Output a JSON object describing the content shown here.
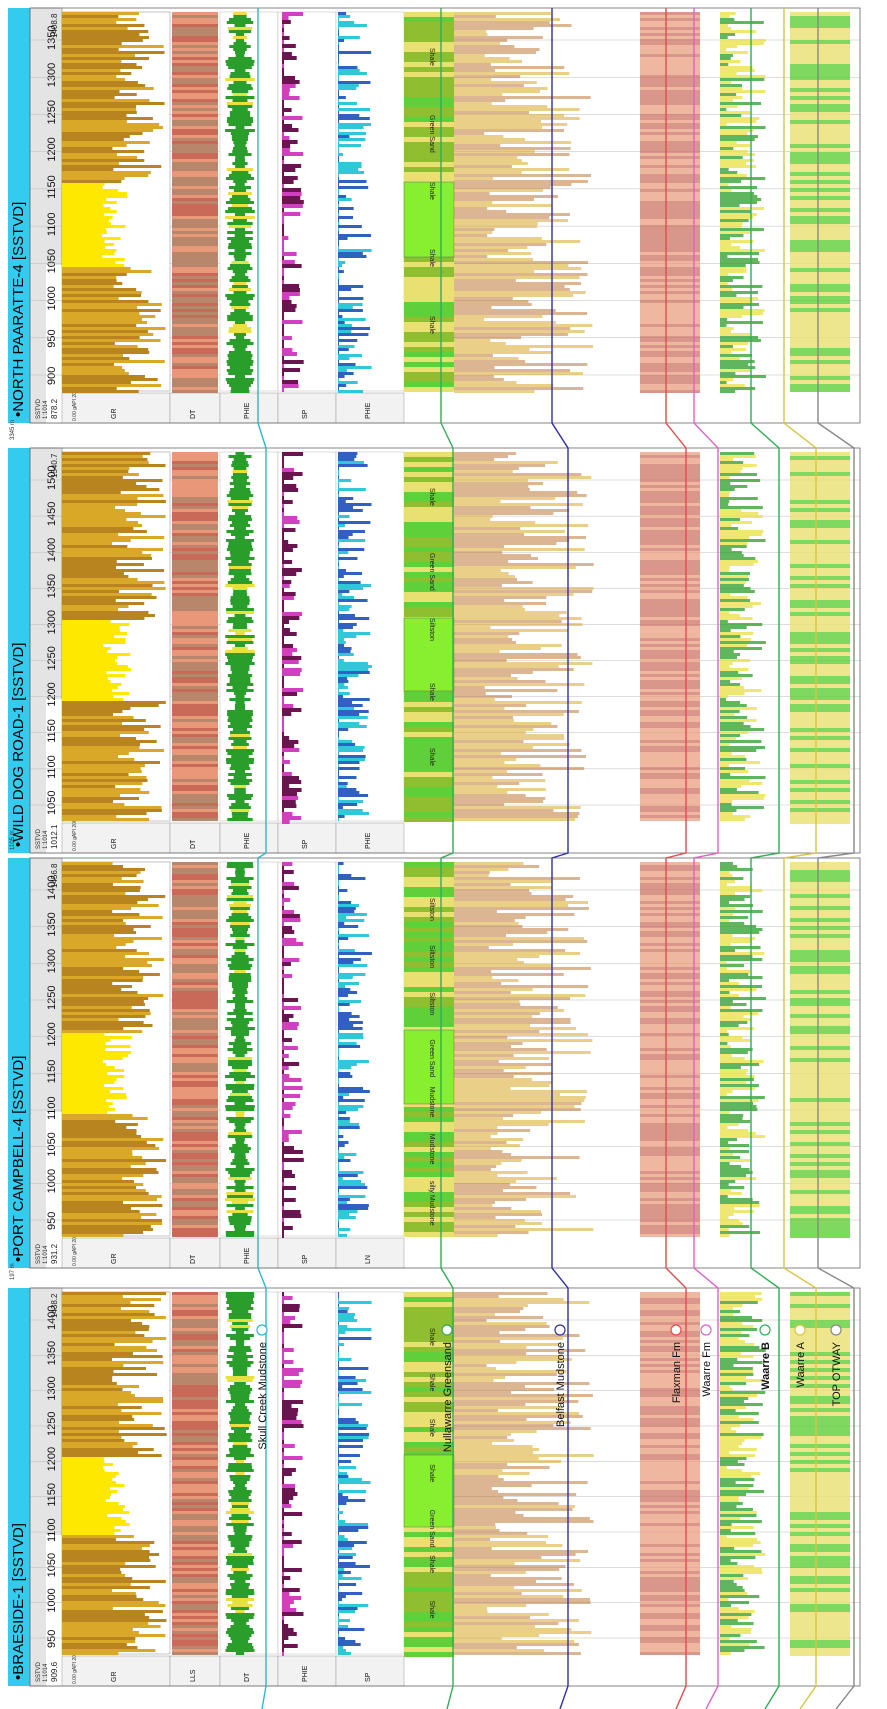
{
  "wells": [
    {
      "name": "NORTH PAARATTE-4 [SSTVD]",
      "ref_label": "SSTVD",
      "scale_label": "1:1014",
      "top_value": "878.2",
      "bottom_value": "1408.8",
      "depth_ticks": [
        "900",
        "950",
        "1000",
        "1050",
        "1100",
        "1150",
        "1200",
        "1250",
        "1300",
        "1350"
      ],
      "curves": [
        "GR",
        "DT",
        "PHIE",
        "SP",
        "PHIE"
      ],
      "gr_scale": "0.00 gAPI 200.00",
      "lithology_labels": [
        "Shale",
        "Green Sand",
        "Shale",
        "Shale",
        "Shale"
      ]
    },
    {
      "name": "WILD DOG ROAD-1 [SSTVD]",
      "ref_label": "SSTVD",
      "scale_label": "1:1014",
      "top_value": "1012.1",
      "bottom_value": "1540.7",
      "depth_ticks": [
        "1050",
        "1100",
        "1150",
        "1200",
        "1250",
        "1300",
        "1350",
        "1400",
        "1450",
        "1500"
      ],
      "curves": [
        "GR",
        "DT",
        "PHIE",
        "SP",
        "PHIE"
      ],
      "gr_scale": "0.00 gAPI 200.00",
      "lithology_labels": [
        "Shale",
        "Green Sand",
        "Siltston",
        "Shale",
        "Shale"
      ]
    },
    {
      "name": "PORT CAMPBELL-4 [SSTVD]",
      "ref_label": "SSTVD",
      "scale_label": "1:1014",
      "top_value": "931.2",
      "bottom_value": "1456.8",
      "depth_ticks": [
        "950",
        "1000",
        "1050",
        "1100",
        "1150",
        "1200",
        "1250",
        "1300",
        "1350",
        "1400"
      ],
      "curves": [
        "GR",
        "DT",
        "PHIE",
        "SP",
        "LN",
        "PHIE"
      ],
      "gr_scale": "0.00 gAPI 200.00",
      "lithology_labels": [
        "Siltston",
        "Siltston",
        "Siltston",
        "Green Sand",
        "Mudstone",
        "Mudstone",
        "silty Mudstone"
      ]
    },
    {
      "name": "BRAESIDE-1 [SSTVD]",
      "ref_label": "SSTVD",
      "scale_label": "1:1014",
      "top_value": "909.6",
      "bottom_value": "1438.2",
      "depth_ticks": [
        "950",
        "1000",
        "1050",
        "1100",
        "1150",
        "1200",
        "1250",
        "1300",
        "1350",
        "1400"
      ],
      "curves": [
        "GR",
        "LLS",
        "DT",
        "PHIE",
        "SP",
        "PHIE"
      ],
      "gr_scale": "0.00 gAPI 200.00",
      "lithology_labels": [
        "Shale",
        "Shale",
        "Shale",
        "Shale",
        "Green Sand",
        "Shale",
        "Shale"
      ]
    }
  ],
  "gaps": [
    "3345 m",
    "1105 m",
    "197 m"
  ],
  "horizons": [
    {
      "name": "Skull Creek Mudstone",
      "color": "#2ab7d9"
    },
    {
      "name": "Nullawarre Greensand",
      "color": "#2fae55"
    },
    {
      "name": "Belfast Mudstone",
      "color": "#2e2ea8"
    },
    {
      "name": "Flaxman Fm",
      "color": "#e8484a"
    },
    {
      "name": "Waarre Fm",
      "color": "#e060c8"
    },
    {
      "name": "Waarre B",
      "color": "#2fae55"
    },
    {
      "name": "Waarre A",
      "color": "#d8c640"
    },
    {
      "name": "TOP OTWAY",
      "color": "#888888"
    }
  ],
  "colors": {
    "header": "#33ccee",
    "gr_fill": "#d9a828",
    "gr_sand": "#ffe800",
    "dt_fill": "#e89878",
    "phie_fill": "#2a9e2a",
    "sp_fill": "#6a1450",
    "phie2_fill": "#30c8d8",
    "lith_green": "#5fcf3a",
    "lith_bright": "#88ee30",
    "lith_yellow": "#e8e070"
  }
}
